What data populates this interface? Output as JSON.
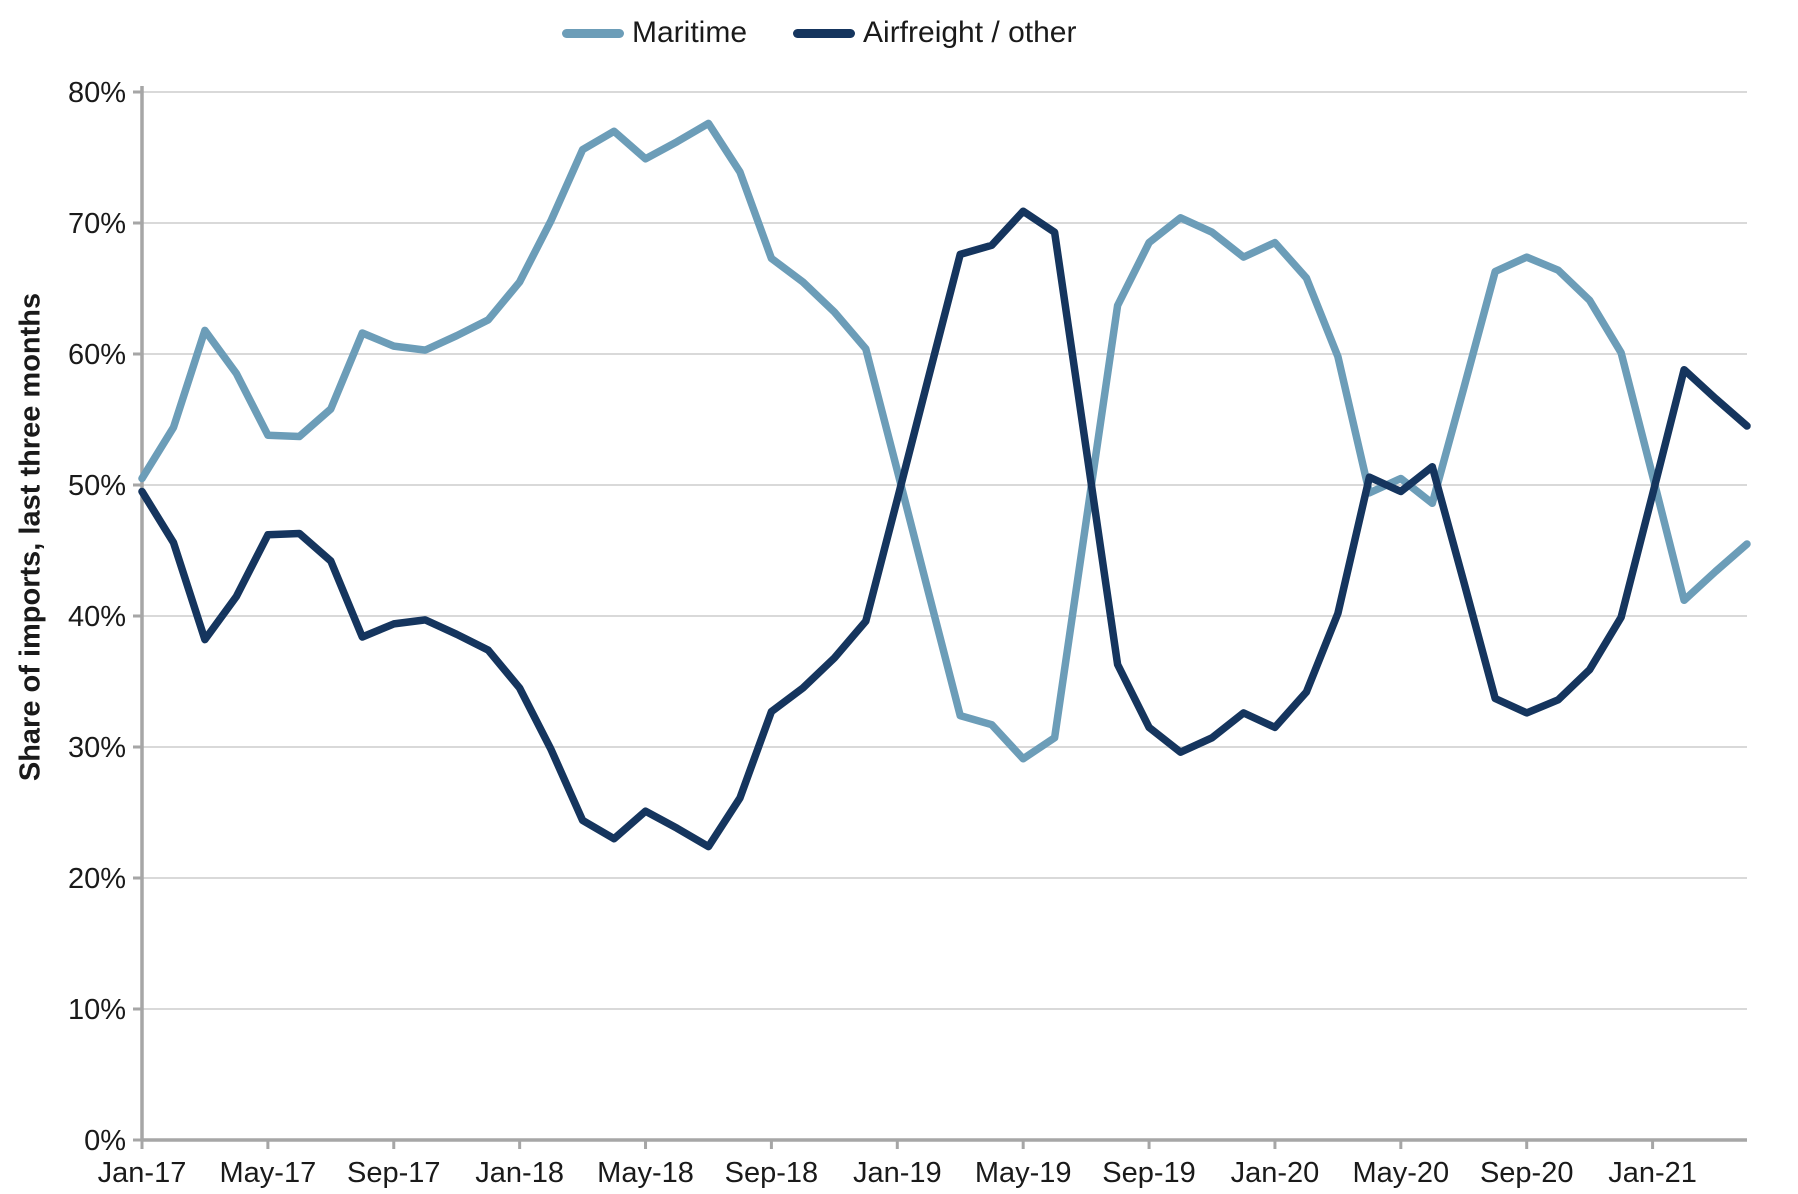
{
  "page": {
    "background": "#ffffff"
  },
  "colors": {
    "grid": "#d9d9d9",
    "axis": "#a6a6a6",
    "text": "#1a1a1a"
  },
  "legend": {
    "items": [
      {
        "label": "Maritime",
        "color": "#6c9db8"
      },
      {
        "label": "Airfreight / other",
        "color": "#15355e"
      }
    ]
  },
  "y_axis": {
    "tick_labels": [
      "0%",
      "10%",
      "20%",
      "30%",
      "40%",
      "50%",
      "60%",
      "70%",
      "80%"
    ],
    "min": 0,
    "max": 80,
    "step": 10
  },
  "x_axis": {
    "tick_labels": [
      "Jan-17",
      "May-17",
      "Sep-17",
      "Jan-18",
      "May-18",
      "Sep-18",
      "Jan-19",
      "May-19",
      "Sep-19",
      "Jan-20",
      "May-20",
      "Sep-20",
      "Jan-21"
    ],
    "tick_every": 4
  },
  "chart_data": {
    "type": "line",
    "title": "",
    "ylabel": "Share of imports, last three months",
    "xlabel": "",
    "ylim": [
      0,
      80
    ],
    "y_tick_step": 10,
    "grid": "horizontal",
    "legend_position": "top-center",
    "x": [
      "Jan-17",
      "Feb-17",
      "Mar-17",
      "Apr-17",
      "May-17",
      "Jun-17",
      "Jul-17",
      "Aug-17",
      "Sep-17",
      "Oct-17",
      "Nov-17",
      "Dec-17",
      "Jan-18",
      "Feb-18",
      "Mar-18",
      "Apr-18",
      "May-18",
      "Jun-18",
      "Jul-18",
      "Aug-18",
      "Sep-18",
      "Oct-18",
      "Nov-18",
      "Dec-18",
      "Jan-19",
      "Feb-19",
      "Mar-19",
      "Apr-19",
      "May-19",
      "Jun-19",
      "Jul-19",
      "Aug-19",
      "Sep-19",
      "Oct-19",
      "Nov-19",
      "Dec-19",
      "Jan-20",
      "Feb-20",
      "Mar-20",
      "Apr-20",
      "May-20",
      "Jun-20",
      "Jul-20",
      "Aug-20",
      "Sep-20",
      "Oct-20",
      "Nov-20",
      "Dec-20",
      "Jan-21",
      "Feb-21",
      "Mar-21",
      "Apr-21"
    ],
    "series": [
      {
        "name": "Maritime",
        "color": "#6c9db8",
        "values": [
          50.5,
          54.4,
          61.8,
          58.5,
          53.8,
          53.7,
          55.8,
          61.6,
          60.6,
          60.3,
          61.4,
          62.6,
          65.5,
          70.2,
          75.6,
          77.0,
          74.9,
          76.2,
          77.6,
          73.9,
          67.3,
          65.5,
          63.2,
          60.4,
          51.1,
          41.7,
          32.4,
          31.7,
          29.1,
          30.7,
          47.2,
          63.7,
          68.5,
          70.4,
          69.3,
          67.4,
          68.5,
          65.8,
          59.8,
          49.4,
          50.5,
          48.6,
          57.4,
          66.3,
          67.4,
          66.4,
          64.1,
          60.1,
          50.7,
          41.2,
          43.4,
          45.5
        ]
      },
      {
        "name": "Airfreight / other",
        "color": "#15355e",
        "values": [
          49.5,
          45.6,
          38.2,
          41.5,
          46.2,
          46.3,
          44.2,
          38.4,
          39.4,
          39.7,
          38.6,
          37.4,
          34.5,
          29.8,
          24.4,
          23.0,
          25.1,
          23.8,
          22.4,
          26.1,
          32.7,
          34.5,
          36.8,
          39.6,
          48.9,
          58.3,
          67.6,
          68.3,
          70.9,
          69.3,
          52.8,
          36.3,
          31.5,
          29.6,
          30.7,
          32.6,
          31.5,
          34.2,
          40.2,
          50.6,
          49.5,
          51.4,
          42.6,
          33.7,
          32.6,
          33.6,
          35.9,
          39.9,
          49.3,
          58.8,
          56.6,
          54.5
        ]
      }
    ]
  }
}
